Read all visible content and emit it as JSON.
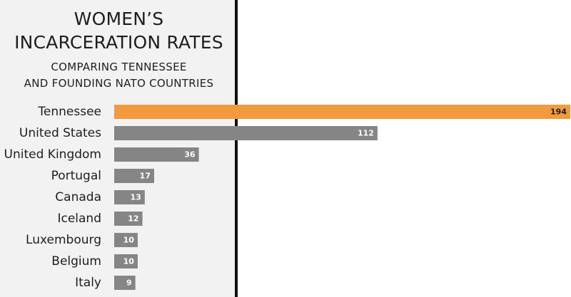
{
  "title_lines": [
    "WOMEN’S",
    "INCARCERATION RATES"
  ],
  "subtitle_lines": [
    "COMPARING TENNESSEE",
    "AND FOUNDING NATO COUNTRIES"
  ],
  "colors": {
    "highlight": "#f19a3e",
    "bar": "#858585",
    "highlight_text": "#1e1e1e",
    "bar_text": "#ffffff",
    "panel_bg": "#f2f2f2"
  },
  "chart_data": {
    "type": "bar",
    "orientation": "horizontal",
    "categories": [
      "Tennessee",
      "United States",
      "United Kingdom",
      "Portugal",
      "Canada",
      "Iceland",
      "Luxembourg",
      "Belgium",
      "Italy"
    ],
    "values": [
      194,
      112,
      36,
      17,
      13,
      12,
      10,
      10,
      9
    ],
    "highlight": "Tennessee",
    "title": "WOMEN’S INCARCERATION RATES",
    "subtitle": "COMPARING TENNESSEE AND FOUNDING NATO COUNTRIES",
    "xlabel": "",
    "ylabel": "",
    "xlim": [
      0,
      194
    ],
    "grid": false,
    "legend": "none"
  }
}
